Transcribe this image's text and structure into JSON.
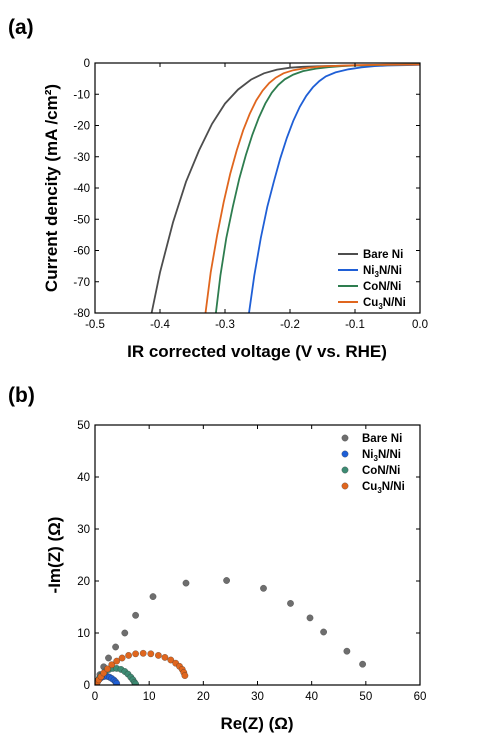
{
  "chart_data": [
    {
      "panel": "(a)",
      "type": "line",
      "xlabel": "IR corrected voltage (V  vs. RHE)",
      "ylabel": "Current dencity (mA /cm²)",
      "xlim": [
        -0.5,
        0.0
      ],
      "ylim": [
        -80,
        0
      ],
      "xticks": [
        -0.5,
        -0.4,
        -0.3,
        -0.2,
        -0.1,
        0.0
      ],
      "xtick_labels": [
        "-0.5",
        "-0.4",
        "-0.3",
        "-0.2",
        "-0.1",
        "0.0"
      ],
      "yticks": [
        0,
        -10,
        -20,
        -30,
        -40,
        -50,
        -60,
        -70,
        -80
      ],
      "ytick_labels": [
        "0",
        "-10",
        "-20",
        "-30",
        "-40",
        "-50",
        "-60",
        "-70",
        "-80"
      ],
      "legend_position": "bottom-right",
      "grid": false,
      "series": [
        {
          "name": "Bare Ni",
          "label_main": "Bare Ni",
          "label_sub": "",
          "label_rest": "",
          "color": "#4d4d4d",
          "x": [
            -0.413,
            -0.4,
            -0.38,
            -0.36,
            -0.34,
            -0.32,
            -0.3,
            -0.28,
            -0.26,
            -0.24,
            -0.22,
            -0.2,
            -0.18,
            -0.15,
            -0.1,
            -0.05,
            0.0
          ],
          "y": [
            -80,
            -67,
            -51,
            -38,
            -28,
            -19.5,
            -13,
            -8.5,
            -5.3,
            -3.3,
            -2.1,
            -1.5,
            -1.2,
            -1.0,
            -0.8,
            -0.6,
            -0.5
          ]
        },
        {
          "name": "Ni3N/Ni",
          "label_main": "Ni",
          "label_sub": "3",
          "label_rest": "N/Ni",
          "color": "#1f5fd6",
          "x": [
            -0.263,
            -0.255,
            -0.245,
            -0.235,
            -0.225,
            -0.215,
            -0.205,
            -0.195,
            -0.185,
            -0.175,
            -0.165,
            -0.155,
            -0.145,
            -0.13,
            -0.11,
            -0.09,
            -0.07,
            -0.05,
            0.0
          ],
          "y": [
            -80,
            -68,
            -56,
            -46,
            -38,
            -30.5,
            -24,
            -18.5,
            -14,
            -10.5,
            -7.8,
            -5.8,
            -4.3,
            -3.0,
            -2.0,
            -1.4,
            -1.0,
            -0.8,
            -0.6
          ]
        },
        {
          "name": "CoN/Ni",
          "label_main": "CoN/Ni",
          "label_sub": "",
          "label_rest": "",
          "color": "#2e7d4f",
          "x": [
            -0.314,
            -0.307,
            -0.298,
            -0.288,
            -0.278,
            -0.268,
            -0.258,
            -0.248,
            -0.238,
            -0.228,
            -0.218,
            -0.208,
            -0.195,
            -0.18,
            -0.16,
            -0.14,
            -0.12,
            -0.1,
            -0.05,
            0.0
          ],
          "y": [
            -80,
            -68,
            -56,
            -46,
            -37,
            -29.5,
            -23,
            -17.5,
            -13,
            -9.5,
            -7,
            -5.2,
            -3.7,
            -2.6,
            -1.8,
            -1.3,
            -1.0,
            -0.8,
            -0.6,
            -0.5
          ]
        },
        {
          "name": "Cu3N/Ni",
          "label_main": "Cu",
          "label_sub": "3",
          "label_rest": "N/Ni",
          "color": "#e0661e",
          "x": [
            -0.33,
            -0.322,
            -0.312,
            -0.302,
            -0.292,
            -0.282,
            -0.272,
            -0.262,
            -0.252,
            -0.242,
            -0.232,
            -0.222,
            -0.21,
            -0.195,
            -0.175,
            -0.15,
            -0.12,
            -0.1,
            -0.05,
            0.0
          ],
          "y": [
            -80,
            -67,
            -55,
            -44.5,
            -35.5,
            -28,
            -21.5,
            -16.3,
            -12,
            -8.8,
            -6.4,
            -4.7,
            -3.3,
            -2.3,
            -1.6,
            -1.1,
            -0.85,
            -0.7,
            -0.55,
            -0.5
          ]
        }
      ]
    },
    {
      "panel": "(b)",
      "type": "scatter",
      "xlabel": "Re(Z) (Ω)",
      "ylabel": "-Im(Z) (Ω)",
      "xlim": [
        0,
        60
      ],
      "ylim": [
        0,
        50
      ],
      "xticks": [
        0,
        10,
        20,
        30,
        40,
        50,
        60
      ],
      "xtick_labels": [
        "0",
        "10",
        "20",
        "30",
        "40",
        "50",
        "60"
      ],
      "yticks": [
        0,
        10,
        20,
        30,
        40,
        50
      ],
      "ytick_labels": [
        "0",
        "10",
        "20",
        "30",
        "40",
        "50"
      ],
      "legend_position": "top-right",
      "grid": false,
      "series": [
        {
          "name": "Bare Ni",
          "label_main": "Bare Ni",
          "label_sub": "",
          "label_rest": "",
          "color": "#6e6e6e",
          "x": [
            0.5,
            0.9,
            1.6,
            2.5,
            3.8,
            5.5,
            7.5,
            10.7,
            16.8,
            24.3,
            31.1,
            36.1,
            39.7,
            42.2,
            46.5,
            49.4
          ],
          "y": [
            0.8,
            2.0,
            3.5,
            5.2,
            7.3,
            10.0,
            13.4,
            17.0,
            19.6,
            20.1,
            18.6,
            15.7,
            12.9,
            10.2,
            6.5,
            4.0
          ]
        },
        {
          "name": "Ni3N/Ni",
          "label_main": "Ni",
          "label_sub": "3",
          "label_rest": "N/Ni",
          "color": "#1f5fd6",
          "x": [
            0.3,
            0.5,
            0.8,
            1.1,
            1.5,
            1.9,
            2.3,
            2.7,
            3.1,
            3.5,
            3.8,
            4.0
          ],
          "y": [
            0.3,
            0.7,
            1.1,
            1.4,
            1.6,
            1.7,
            1.65,
            1.5,
            1.25,
            0.95,
            0.6,
            0.3
          ]
        },
        {
          "name": "CoN/Ni",
          "label_main": "CoN/Ni",
          "label_sub": "",
          "label_rest": "",
          "color": "#3d8b73",
          "x": [
            0.4,
            0.8,
            1.3,
            1.9,
            2.6,
            3.3,
            4.0,
            4.8,
            5.5,
            6.1,
            6.6,
            7.0,
            7.3,
            7.5
          ],
          "y": [
            0.6,
            1.3,
            2.0,
            2.6,
            3.0,
            3.2,
            3.2,
            3.0,
            2.6,
            2.1,
            1.5,
            1.0,
            0.5,
            0.2
          ]
        },
        {
          "name": "Cu3N/Ni",
          "label_main": "Cu",
          "label_sub": "3",
          "label_rest": "N/Ni",
          "color": "#e0661e",
          "x": [
            0.4,
            0.7,
            1.1,
            1.6,
            2.3,
            3.1,
            4.0,
            5.0,
            6.2,
            7.5,
            8.9,
            10.3,
            11.7,
            12.9,
            14.0,
            14.9,
            15.6,
            16.1,
            16.4,
            16.6
          ],
          "y": [
            0.5,
            1.0,
            1.6,
            2.3,
            3.1,
            3.9,
            4.6,
            5.2,
            5.7,
            6.0,
            6.1,
            6.0,
            5.7,
            5.3,
            4.8,
            4.2,
            3.6,
            3.0,
            2.4,
            1.8
          ]
        }
      ]
    }
  ]
}
